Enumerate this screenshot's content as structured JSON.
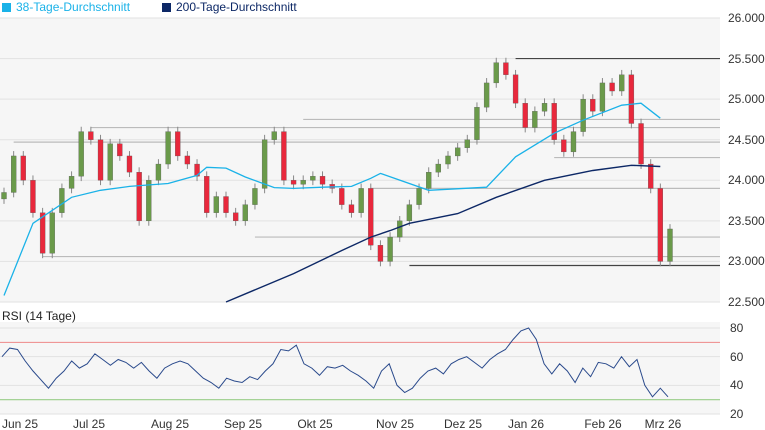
{
  "legend": [
    {
      "label": "38-Tage-Durchschnitt",
      "color": "#1ab2e8"
    },
    {
      "label": "200-Tage-Durchschnitt",
      "color": "#0d2866"
    }
  ],
  "chart_data": {
    "type": "candlestick",
    "ylim": [
      22500,
      26000
    ],
    "yticks": [
      "26.000",
      "25.500",
      "25.000",
      "24.500",
      "24.000",
      "23.500",
      "23.000",
      "22.500"
    ],
    "ytick_values": [
      26000,
      25500,
      25000,
      24500,
      24000,
      23500,
      23000,
      22500
    ],
    "xticks": [
      "Jun 25",
      "Jul 25",
      "Aug 25",
      "Sep 25",
      "Okt 25",
      "Nov 25",
      "Dez 25",
      "Jan 26",
      "Feb 26",
      "Mrz 26"
    ],
    "closes": [
      23850,
      24300,
      24000,
      23600,
      23100,
      23600,
      23900,
      24050,
      24600,
      24500,
      24000,
      24450,
      24300,
      24100,
      23500,
      24000,
      24200,
      24600,
      24300,
      24200,
      24050,
      23600,
      23800,
      23600,
      23500,
      23700,
      23900,
      24500,
      24600,
      24000,
      23950,
      24000,
      24050,
      23950,
      23900,
      23700,
      23600,
      23900,
      23200,
      23000,
      23300,
      23500,
      23700,
      23900,
      24100,
      24200,
      24300,
      24400,
      24500,
      24900,
      25200,
      25450,
      25300,
      24950,
      24650,
      24850,
      24950,
      24500,
      24350,
      24600,
      25000,
      24850,
      25200,
      25100,
      25300,
      24700,
      24200,
      23900,
      23000,
      23400
    ],
    "ma38": [
      [
        0,
        22580
      ],
      [
        3,
        23470
      ],
      [
        7,
        23790
      ],
      [
        10,
        23877
      ],
      [
        13,
        23925
      ],
      [
        17,
        23960
      ],
      [
        20,
        24060
      ],
      [
        21,
        24160
      ],
      [
        23,
        24150
      ],
      [
        25,
        24040
      ],
      [
        28,
        23910
      ],
      [
        30,
        23900
      ],
      [
        33,
        23915
      ],
      [
        36,
        23925
      ],
      [
        38,
        24025
      ],
      [
        39,
        24085
      ],
      [
        44,
        23877
      ],
      [
        50,
        23915
      ],
      [
        53,
        24290
      ],
      [
        57,
        24580
      ],
      [
        60,
        24740
      ],
      [
        64,
        24925
      ],
      [
        66,
        24950
      ],
      [
        68,
        24765
      ]
    ],
    "ma200": [
      [
        23,
        22500
      ],
      [
        30,
        22850
      ],
      [
        35,
        23135
      ],
      [
        38,
        23300
      ],
      [
        40,
        23380
      ],
      [
        42,
        23470
      ],
      [
        47,
        23590
      ],
      [
        51,
        23790
      ],
      [
        56,
        24000
      ],
      [
        61,
        24120
      ],
      [
        65,
        24185
      ],
      [
        68,
        24170
      ]
    ],
    "levels": [
      {
        "price": 25500,
        "from": 53,
        "dark": true
      },
      {
        "price": 22950,
        "from": 42,
        "dark": true
      },
      {
        "price": 24750,
        "from": 31,
        "dark": false
      },
      {
        "price": 24650,
        "from": 9,
        "dark": false
      },
      {
        "price": 24470,
        "from": 1,
        "dark": false
      },
      {
        "price": 24280,
        "from": 57,
        "dark": false
      },
      {
        "price": 23900,
        "from": 38,
        "dark": false
      },
      {
        "price": 23300,
        "from": 26,
        "dark": false
      },
      {
        "price": 23060,
        "from": 4,
        "dark": false
      }
    ],
    "colors": {
      "up": "#6a9a4a",
      "down": "#e8283c",
      "wick": "#888888"
    },
    "rsi": {
      "title": "RSI (14 Tage)",
      "ylim": [
        20,
        80
      ],
      "yticks": [
        "80",
        "60",
        "40",
        "20"
      ],
      "ytick_values": [
        80,
        60,
        40,
        20
      ],
      "overbought": 70,
      "oversold": 30,
      "values": [
        60,
        66,
        65,
        57,
        50,
        44,
        38,
        45,
        50,
        57,
        52,
        55,
        62,
        58,
        54,
        58,
        56,
        52,
        56,
        50,
        45,
        52,
        55,
        57,
        55,
        50,
        45,
        42,
        38,
        45,
        43,
        42,
        46,
        44,
        50,
        55,
        65,
        64,
        68,
        55,
        52,
        47,
        53,
        52,
        54,
        50,
        47,
        43,
        38,
        50,
        55,
        40,
        35,
        38,
        45,
        50,
        52,
        48,
        55,
        58,
        60,
        56,
        52,
        58,
        62,
        65,
        72,
        78,
        80,
        72,
        55,
        48,
        55,
        50,
        42,
        52,
        46,
        56,
        55,
        52,
        60,
        53,
        58,
        40,
        32,
        38,
        32
      ]
    }
  }
}
